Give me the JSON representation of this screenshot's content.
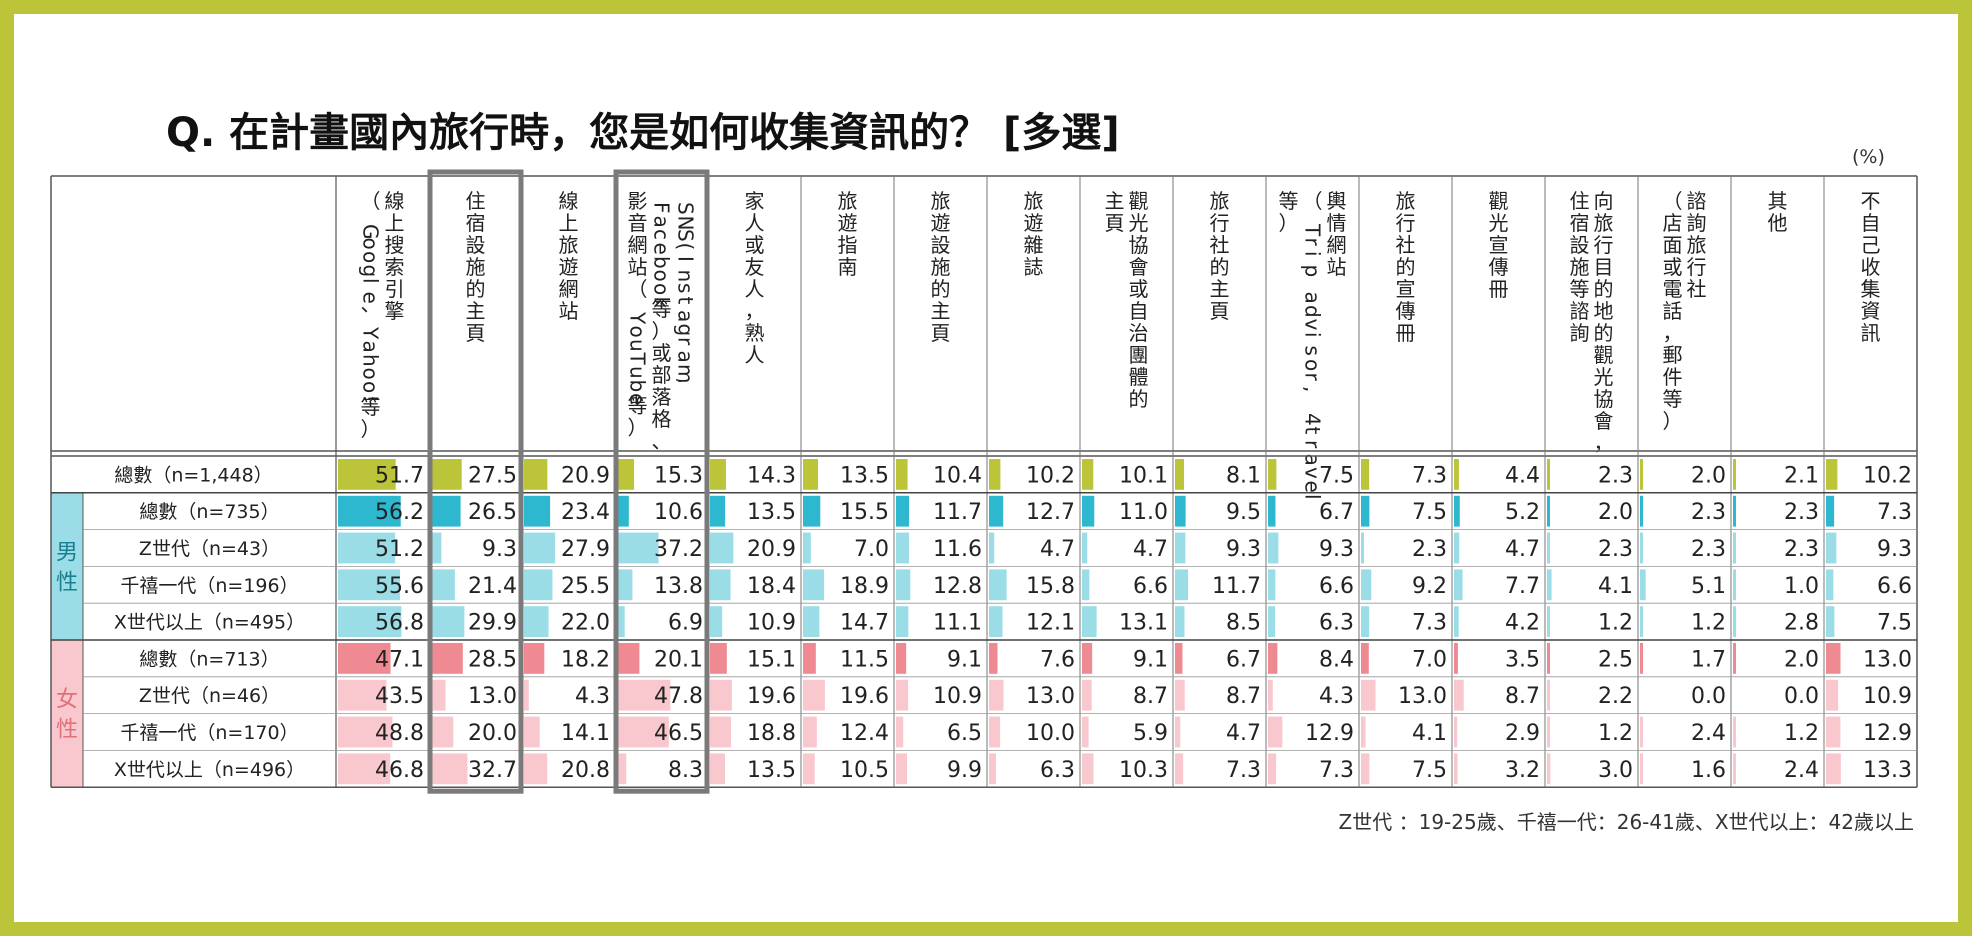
{
  "title": "Q. 在計畫國內旅行時，您是如何收集資訊的？ [多選]",
  "unit": "(%)",
  "footnote": "Z世代 ：19-25歲、千禧一代：26-41歲、X世代以上：42歲以上",
  "colors": {
    "frame": "#bcc43a",
    "total": "#bcc43a",
    "male_total": "#2eb8cf",
    "male": "#9bdde6",
    "female_total": "#f08a92",
    "female": "#f9c8ce",
    "male_bg": "#9bdde6",
    "female_bg": "#f9c8ce"
  },
  "chart_data": {
    "type": "table",
    "title": "Q. 在計畫國內旅行時，您是如何收集資訊的？ [多選]",
    "columns": [
      [
        "線上搜索引擎",
        "（Google、Yahoo!等）"
      ],
      [
        "住宿設施的主頁"
      ],
      [
        "線上旅遊網站"
      ],
      [
        "SNS(Instagram,",
        "Facebook等）或部落格、",
        "影音網站（YouTube等）"
      ],
      [
        "家人或友人，熟人"
      ],
      [
        "旅遊指南"
      ],
      [
        "旅遊設施的主頁"
      ],
      [
        "旅遊雜誌"
      ],
      [
        "觀光協會或自治團體的",
        "主頁"
      ],
      [
        "旅行社的主頁"
      ],
      [
        "輿情網站",
        "（Trip advisor, 4travel",
        "等）"
      ],
      [
        "旅行社的宣傳冊"
      ],
      [
        "觀光宣傳冊"
      ],
      [
        "向旅行目的地的觀光協會，",
        "住宿設施等諮詢"
      ],
      [
        "諮詢旅行社",
        "（店面或電話，郵件等）"
      ],
      [
        "其他"
      ],
      [
        "不自己收集資訊"
      ]
    ],
    "highlighted_columns": [
      1,
      3
    ],
    "groups": [
      {
        "label": "",
        "rows": [
          {
            "label": "總數（n=1,448）",
            "style": "total",
            "values": [
              51.7,
              27.5,
              20.9,
              15.3,
              14.3,
              13.5,
              10.4,
              10.2,
              10.1,
              8.1,
              7.5,
              7.3,
              4.4,
              2.3,
              2.0,
              2.1,
              10.2
            ]
          }
        ]
      },
      {
        "label": "男性",
        "rows": [
          {
            "label": "總數（n=735）",
            "style": "male_total",
            "values": [
              56.2,
              26.5,
              23.4,
              10.6,
              13.5,
              15.5,
              11.7,
              12.7,
              11.0,
              9.5,
              6.7,
              7.5,
              5.2,
              2.0,
              2.3,
              2.3,
              7.3
            ]
          },
          {
            "label": "Z世代（n=43）",
            "style": "male",
            "values": [
              51.2,
              9.3,
              27.9,
              37.2,
              20.9,
              7.0,
              11.6,
              4.7,
              4.7,
              9.3,
              9.3,
              2.3,
              4.7,
              2.3,
              2.3,
              2.3,
              9.3
            ]
          },
          {
            "label": "千禧一代（n=196）",
            "style": "male",
            "values": [
              55.6,
              21.4,
              25.5,
              13.8,
              18.4,
              18.9,
              12.8,
              15.8,
              6.6,
              11.7,
              6.6,
              9.2,
              7.7,
              4.1,
              5.1,
              1.0,
              6.6
            ]
          },
          {
            "label": "X世代以上（n=495）",
            "style": "male",
            "values": [
              56.8,
              29.9,
              22.0,
              6.9,
              10.9,
              14.7,
              11.1,
              12.1,
              13.1,
              8.5,
              6.3,
              7.3,
              4.2,
              1.2,
              1.2,
              2.8,
              7.5
            ]
          }
        ]
      },
      {
        "label": "女性",
        "rows": [
          {
            "label": "總數（n=713）",
            "style": "female_total",
            "values": [
              47.1,
              28.5,
              18.2,
              20.1,
              15.1,
              11.5,
              9.1,
              7.6,
              9.1,
              6.7,
              8.4,
              7.0,
              3.5,
              2.5,
              1.7,
              2.0,
              13.0
            ]
          },
          {
            "label": "Z世代（n=46）",
            "style": "female",
            "values": [
              43.5,
              13.0,
              4.3,
              47.8,
              19.6,
              19.6,
              10.9,
              13.0,
              8.7,
              8.7,
              4.3,
              13.0,
              8.7,
              2.2,
              0.0,
              0.0,
              10.9
            ]
          },
          {
            "label": "千禧一代（n=170）",
            "style": "female",
            "values": [
              48.8,
              20.0,
              14.1,
              46.5,
              18.8,
              12.4,
              6.5,
              10.0,
              5.9,
              4.7,
              12.9,
              4.1,
              2.9,
              1.2,
              2.4,
              1.2,
              12.9
            ]
          },
          {
            "label": "X世代以上（n=496）",
            "style": "female",
            "values": [
              46.8,
              32.7,
              20.8,
              8.3,
              13.5,
              10.5,
              9.9,
              6.3,
              10.3,
              7.3,
              7.3,
              7.5,
              3.2,
              3.0,
              1.6,
              2.4,
              13.3
            ]
          }
        ]
      }
    ]
  }
}
